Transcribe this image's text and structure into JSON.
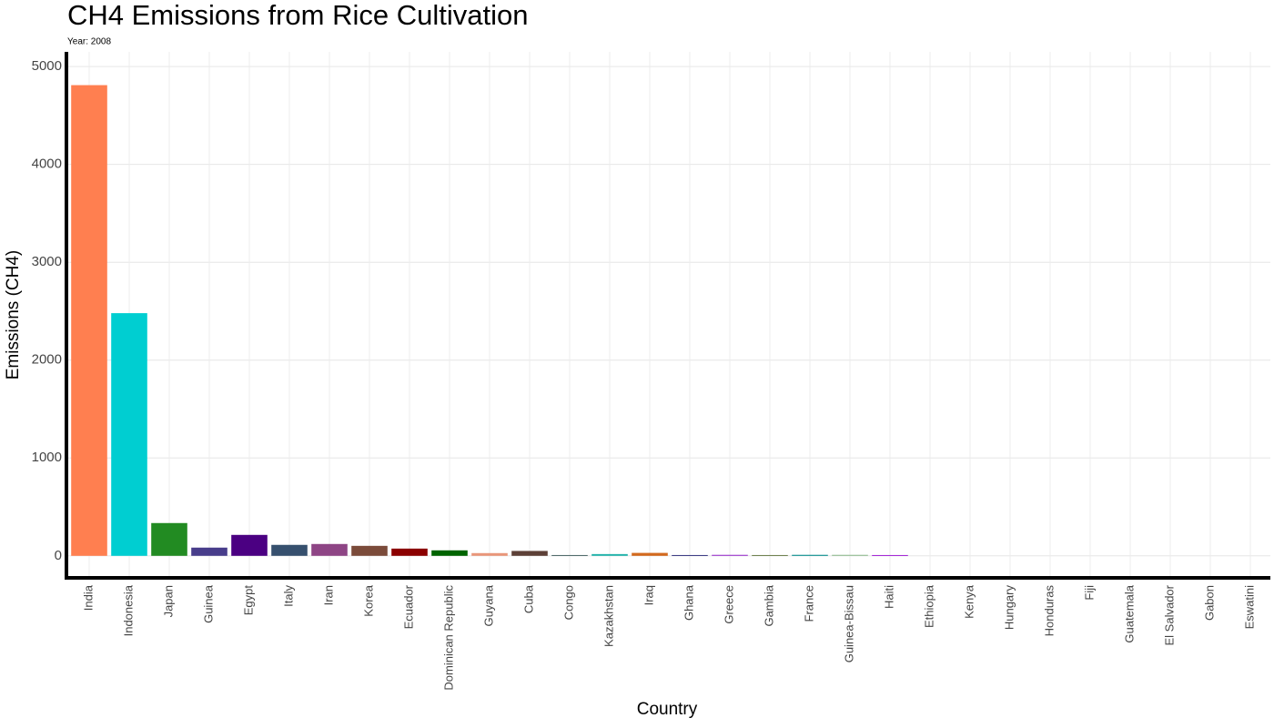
{
  "chart_data": {
    "type": "bar",
    "title": "CH4 Emissions from Rice Cultivation",
    "subtitle": "Year: 2008",
    "x_label": "Country",
    "y_label": "Emissions (CH4)",
    "categories": [
      "India",
      "Indonesia",
      "Japan",
      "Guinea",
      "Egypt",
      "Italy",
      "Iran",
      "Korea",
      "Ecuador",
      "Dominican Republic",
      "Guyana",
      "Cuba",
      "Congo",
      "Kazakhstan",
      "Iraq",
      "Ghana",
      "Greece",
      "Gambia",
      "France",
      "Guinea-Bissau",
      "Haiti",
      "Ethiopia",
      "Kenya",
      "Hungary",
      "Honduras",
      "Fiji",
      "Guatemala",
      "El Salvador",
      "Gabon",
      "Eswatini"
    ],
    "values": [
      4810,
      2480,
      335,
      84,
      214,
      112,
      121,
      102,
      74,
      56,
      28,
      50,
      8,
      18,
      30,
      8,
      10,
      8,
      10,
      10,
      8,
      0,
      0,
      0,
      0,
      0,
      0,
      0,
      0,
      0
    ],
    "colors": [
      "#ff7f50",
      "#00ced1",
      "#228b22",
      "#483d8b",
      "#4b0082",
      "#36506e",
      "#8e4585",
      "#7b4b3a",
      "#8b0000",
      "#006400",
      "#e9967a",
      "#5d4037",
      "#2f4f4f",
      "#20b2aa",
      "#d2691e",
      "#191970",
      "#9932cc",
      "#556b2f",
      "#008b8b",
      "#8fbc8f",
      "#9400d3",
      "#888888",
      "#888888",
      "#888888",
      "#888888",
      "#888888",
      "#888888",
      "#888888",
      "#888888",
      "#888888"
    ],
    "ylim": [
      -225,
      5150
    ],
    "yticks": [
      0,
      1000,
      2000,
      3000,
      4000,
      5000
    ],
    "grid": true
  }
}
